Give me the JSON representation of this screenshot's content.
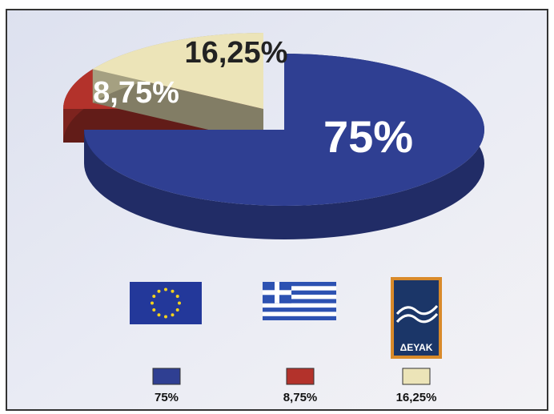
{
  "chart_data": {
    "type": "pie",
    "categories": [
      null,
      null,
      "ΔΕΥΑΚ"
    ],
    "values": [
      75,
      8.75,
      16.25
    ],
    "value_labels": [
      "75%",
      "8,75%",
      "16,25%"
    ],
    "colors": [
      "#2f3f92",
      "#b3322b",
      "#ece4b8"
    ],
    "exploded": [
      false,
      true,
      true
    ],
    "legend": "bottom"
  }
}
